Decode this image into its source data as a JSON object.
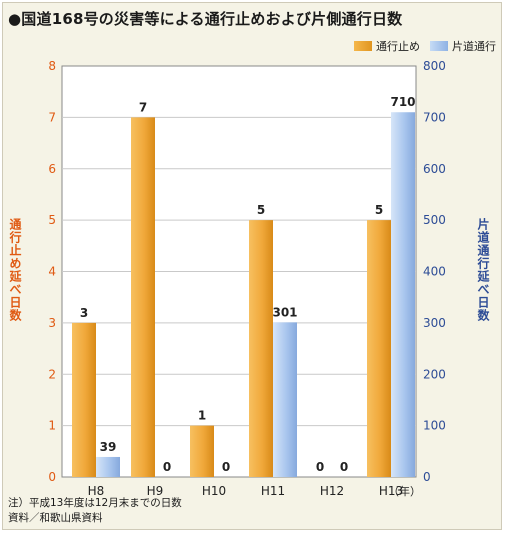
{
  "title": "●国道168号の災害等による通行止めおよび片側通行日数",
  "legend": {
    "closure": "通行止め",
    "one_way": "片道通行"
  },
  "colors": {
    "closure": "#f0a83a",
    "one_way": "#a9c6ee",
    "left_axis": "#e05a13",
    "right_axis": "#2d4c96"
  },
  "x_unit": "（年）",
  "notes": {
    "line1": "注）平成13年度は12月末までの日数",
    "line2": "資料／和歌山県資料"
  },
  "chart_data": {
    "type": "bar",
    "title": "●国道168号の災害等による通行止めおよび片側通行日数",
    "categories": [
      "H8",
      "H9",
      "H10",
      "H11",
      "H12",
      "H13"
    ],
    "series": [
      {
        "name": "通行止め",
        "axis": "left",
        "values": [
          3,
          7,
          1,
          5,
          0,
          5
        ]
      },
      {
        "name": "片道通行",
        "axis": "right",
        "values": [
          39,
          0,
          0,
          301,
          0,
          710
        ]
      }
    ],
    "ylabel": "通行止め延べ日数",
    "ylabel_right": "片道通行延べ日数",
    "ylim": [
      0,
      8
    ],
    "ylim_right": [
      0,
      800
    ],
    "yticks": [
      0,
      1,
      2,
      3,
      4,
      5,
      6,
      7,
      8
    ],
    "yticks_right": [
      0,
      100,
      200,
      300,
      400,
      500,
      600,
      700,
      800
    ],
    "grid": true,
    "legend_position": "top-right"
  }
}
